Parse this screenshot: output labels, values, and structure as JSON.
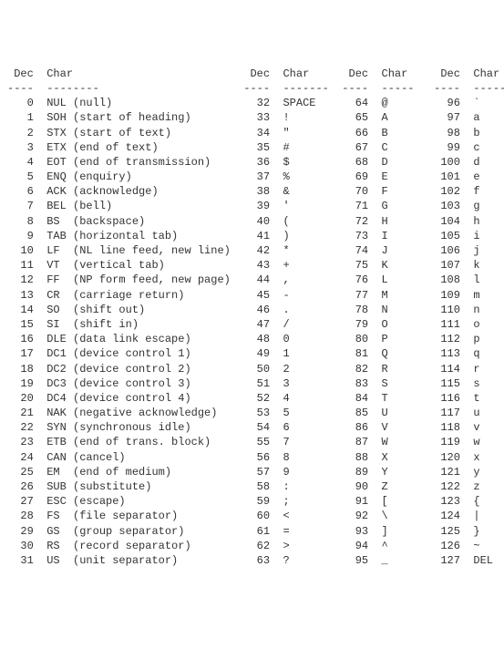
{
  "headers": {
    "dec": "Dec",
    "char": "Char"
  },
  "dashes": {
    "col1_dec": " ---",
    "col1_char": "--------",
    "col_dec": "---",
    "col_char": "----"
  },
  "blocks": [
    {
      "dec_width": 4,
      "char_width": 28,
      "gap_after": 2,
      "rows": [
        {
          "dec": "0",
          "char": "NUL (null)"
        },
        {
          "dec": "1",
          "char": "SOH (start of heading)"
        },
        {
          "dec": "2",
          "char": "STX (start of text)"
        },
        {
          "dec": "3",
          "char": "ETX (end of text)"
        },
        {
          "dec": "4",
          "char": "EOT (end of transmission)"
        },
        {
          "dec": "5",
          "char": "ENQ (enquiry)"
        },
        {
          "dec": "6",
          "char": "ACK (acknowledge)"
        },
        {
          "dec": "7",
          "char": "BEL (bell)"
        },
        {
          "dec": "8",
          "char": "BS  (backspace)"
        },
        {
          "dec": "9",
          "char": "TAB (horizontal tab)"
        },
        {
          "dec": "10",
          "char": "LF  (NL line feed, new line)"
        },
        {
          "dec": "11",
          "char": "VT  (vertical tab)"
        },
        {
          "dec": "12",
          "char": "FF  (NP form feed, new page)"
        },
        {
          "dec": "13",
          "char": "CR  (carriage return)"
        },
        {
          "dec": "14",
          "char": "SO  (shift out)"
        },
        {
          "dec": "15",
          "char": "SI  (shift in)"
        },
        {
          "dec": "16",
          "char": "DLE (data link escape)"
        },
        {
          "dec": "17",
          "char": "DC1 (device control 1)"
        },
        {
          "dec": "18",
          "char": "DC2 (device control 2)"
        },
        {
          "dec": "19",
          "char": "DC3 (device control 3)"
        },
        {
          "dec": "20",
          "char": "DC4 (device control 4)"
        },
        {
          "dec": "21",
          "char": "NAK (negative acknowledge)"
        },
        {
          "dec": "22",
          "char": "SYN (synchronous idle)"
        },
        {
          "dec": "23",
          "char": "ETB (end of trans. block)"
        },
        {
          "dec": "24",
          "char": "CAN (cancel)"
        },
        {
          "dec": "25",
          "char": "EM  (end of medium)"
        },
        {
          "dec": "26",
          "char": "SUB (substitute)"
        },
        {
          "dec": "27",
          "char": "ESC (escape)"
        },
        {
          "dec": "28",
          "char": "FS  (file separator)"
        },
        {
          "dec": "29",
          "char": "GS  (group separator)"
        },
        {
          "dec": "30",
          "char": "RS  (record separator)"
        },
        {
          "dec": "31",
          "char": "US  (unit separator)"
        }
      ]
    },
    {
      "dec_width": 4,
      "char_width": 7,
      "gap_after": 2,
      "rows": [
        {
          "dec": "32",
          "char": "SPACE"
        },
        {
          "dec": "33",
          "char": "!"
        },
        {
          "dec": "34",
          "char": "\""
        },
        {
          "dec": "35",
          "char": "#"
        },
        {
          "dec": "36",
          "char": "$"
        },
        {
          "dec": "37",
          "char": "%"
        },
        {
          "dec": "38",
          "char": "&"
        },
        {
          "dec": "39",
          "char": "'"
        },
        {
          "dec": "40",
          "char": "("
        },
        {
          "dec": "41",
          "char": ")"
        },
        {
          "dec": "42",
          "char": "*"
        },
        {
          "dec": "43",
          "char": "+"
        },
        {
          "dec": "44",
          "char": ","
        },
        {
          "dec": "45",
          "char": "-"
        },
        {
          "dec": "46",
          "char": "."
        },
        {
          "dec": "47",
          "char": "/"
        },
        {
          "dec": "48",
          "char": "0"
        },
        {
          "dec": "49",
          "char": "1"
        },
        {
          "dec": "50",
          "char": "2"
        },
        {
          "dec": "51",
          "char": "3"
        },
        {
          "dec": "52",
          "char": "4"
        },
        {
          "dec": "53",
          "char": "5"
        },
        {
          "dec": "54",
          "char": "6"
        },
        {
          "dec": "55",
          "char": "7"
        },
        {
          "dec": "56",
          "char": "8"
        },
        {
          "dec": "57",
          "char": "9"
        },
        {
          "dec": "58",
          "char": ":"
        },
        {
          "dec": "59",
          "char": ";"
        },
        {
          "dec": "60",
          "char": "<"
        },
        {
          "dec": "61",
          "char": "="
        },
        {
          "dec": "62",
          "char": ">"
        },
        {
          "dec": "63",
          "char": "?"
        }
      ]
    },
    {
      "dec_width": 4,
      "char_width": 5,
      "gap_after": 2,
      "rows": [
        {
          "dec": "64",
          "char": "@"
        },
        {
          "dec": "65",
          "char": "A"
        },
        {
          "dec": "66",
          "char": "B"
        },
        {
          "dec": "67",
          "char": "C"
        },
        {
          "dec": "68",
          "char": "D"
        },
        {
          "dec": "69",
          "char": "E"
        },
        {
          "dec": "70",
          "char": "F"
        },
        {
          "dec": "71",
          "char": "G"
        },
        {
          "dec": "72",
          "char": "H"
        },
        {
          "dec": "73",
          "char": "I"
        },
        {
          "dec": "74",
          "char": "J"
        },
        {
          "dec": "75",
          "char": "K"
        },
        {
          "dec": "76",
          "char": "L"
        },
        {
          "dec": "77",
          "char": "M"
        },
        {
          "dec": "78",
          "char": "N"
        },
        {
          "dec": "79",
          "char": "O"
        },
        {
          "dec": "80",
          "char": "P"
        },
        {
          "dec": "81",
          "char": "Q"
        },
        {
          "dec": "82",
          "char": "R"
        },
        {
          "dec": "83",
          "char": "S"
        },
        {
          "dec": "84",
          "char": "T"
        },
        {
          "dec": "85",
          "char": "U"
        },
        {
          "dec": "86",
          "char": "V"
        },
        {
          "dec": "87",
          "char": "W"
        },
        {
          "dec": "88",
          "char": "X"
        },
        {
          "dec": "89",
          "char": "Y"
        },
        {
          "dec": "90",
          "char": "Z"
        },
        {
          "dec": "91",
          "char": "["
        },
        {
          "dec": "92",
          "char": "\\"
        },
        {
          "dec": "93",
          "char": "]"
        },
        {
          "dec": "94",
          "char": "^"
        },
        {
          "dec": "95",
          "char": "_"
        }
      ]
    },
    {
      "dec_width": 5,
      "char_width": 5,
      "gap_after": 0,
      "rows": [
        {
          "dec": "96",
          "char": "`"
        },
        {
          "dec": "97",
          "char": "a"
        },
        {
          "dec": "98",
          "char": "b"
        },
        {
          "dec": "99",
          "char": "c"
        },
        {
          "dec": "100",
          "char": "d"
        },
        {
          "dec": "101",
          "char": "e"
        },
        {
          "dec": "102",
          "char": "f"
        },
        {
          "dec": "103",
          "char": "g"
        },
        {
          "dec": "104",
          "char": "h"
        },
        {
          "dec": "105",
          "char": "i"
        },
        {
          "dec": "106",
          "char": "j"
        },
        {
          "dec": "107",
          "char": "k"
        },
        {
          "dec": "108",
          "char": "l"
        },
        {
          "dec": "109",
          "char": "m"
        },
        {
          "dec": "110",
          "char": "n"
        },
        {
          "dec": "111",
          "char": "o"
        },
        {
          "dec": "112",
          "char": "p"
        },
        {
          "dec": "113",
          "char": "q"
        },
        {
          "dec": "114",
          "char": "r"
        },
        {
          "dec": "115",
          "char": "s"
        },
        {
          "dec": "116",
          "char": "t"
        },
        {
          "dec": "117",
          "char": "u"
        },
        {
          "dec": "118",
          "char": "v"
        },
        {
          "dec": "119",
          "char": "w"
        },
        {
          "dec": "120",
          "char": "x"
        },
        {
          "dec": "121",
          "char": "y"
        },
        {
          "dec": "122",
          "char": "z"
        },
        {
          "dec": "123",
          "char": "{"
        },
        {
          "dec": "124",
          "char": "|"
        },
        {
          "dec": "125",
          "char": "}"
        },
        {
          "dec": "126",
          "char": "~"
        },
        {
          "dec": "127",
          "char": "DEL"
        }
      ]
    }
  ]
}
